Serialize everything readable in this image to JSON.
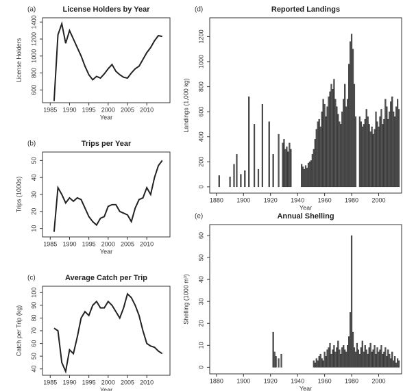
{
  "chart_data": [
    {
      "type": "line",
      "panel_label": "(a)",
      "title": "License Holders by Year",
      "x_label": "Year",
      "y_label": "License Holders",
      "color": "#222222",
      "x": [
        1986,
        1987,
        1988,
        1989,
        1990,
        1991,
        1992,
        1993,
        1994,
        1995,
        1996,
        1997,
        1998,
        1999,
        2000,
        2001,
        2002,
        2003,
        2004,
        2005,
        2006,
        2007,
        2008,
        2009,
        2010,
        2011,
        2012,
        2013,
        2014
      ],
      "values": [
        470,
        1250,
        1380,
        1150,
        1300,
        1200,
        1100,
        1000,
        880,
        780,
        720,
        760,
        740,
        790,
        850,
        900,
        820,
        780,
        750,
        740,
        800,
        850,
        880,
        960,
        1040,
        1100,
        1180,
        1240,
        1230
      ],
      "xlim": [
        1983,
        2016
      ],
      "xticks": [
        1985,
        1990,
        1995,
        2000,
        2005,
        2010
      ],
      "ylim": [
        450,
        1450
      ],
      "yticks": [
        600,
        800,
        1000,
        1200,
        1400
      ]
    },
    {
      "type": "line",
      "panel_label": "(b)",
      "title": "Trips per Year",
      "x_label": "Year",
      "y_label": "Trips (1000s)",
      "color": "#222222",
      "x": [
        1986,
        1987,
        1988,
        1989,
        1990,
        1991,
        1992,
        1993,
        1994,
        1995,
        1996,
        1997,
        1998,
        1999,
        2000,
        2001,
        2002,
        2003,
        2004,
        2005,
        2006,
        2007,
        2008,
        2009,
        2010,
        2011,
        2012,
        2013,
        2014
      ],
      "values": [
        8,
        34,
        30,
        25,
        28,
        26,
        28,
        27,
        22,
        17,
        14,
        12,
        16,
        17,
        23,
        24,
        24,
        20,
        19,
        18,
        14,
        22,
        27,
        28,
        34,
        30,
        40,
        47,
        50
      ],
      "xlim": [
        1983,
        2016
      ],
      "xticks": [
        1985,
        1990,
        1995,
        2000,
        2005,
        2010
      ],
      "ylim": [
        5,
        55
      ],
      "yticks": [
        10,
        20,
        30,
        40,
        50
      ]
    },
    {
      "type": "line",
      "panel_label": "(c)",
      "title": "Average Catch per Trip",
      "x_label": "Year",
      "y_label": "Catch per Trip (kg)",
      "color": "#222222",
      "x": [
        1986,
        1987,
        1988,
        1989,
        1990,
        1991,
        1992,
        1993,
        1994,
        1995,
        1996,
        1997,
        1998,
        1999,
        2000,
        2001,
        2002,
        2003,
        2004,
        2005,
        2006,
        2007,
        2008,
        2009,
        2010,
        2011,
        2012,
        2013,
        2014
      ],
      "values": [
        72,
        70,
        45,
        38,
        55,
        52,
        65,
        80,
        85,
        82,
        90,
        93,
        88,
        88,
        93,
        90,
        85,
        80,
        88,
        99,
        96,
        90,
        82,
        70,
        60,
        58,
        57,
        54,
        52
      ],
      "xlim": [
        1983,
        2016
      ],
      "xticks": [
        1985,
        1990,
        1995,
        2000,
        2005,
        2010
      ],
      "ylim": [
        35,
        105
      ],
      "yticks": [
        40,
        50,
        60,
        70,
        80,
        90,
        100
      ]
    },
    {
      "type": "bar",
      "panel_label": "(d)",
      "title": "Reported Landings",
      "x_label": "Year",
      "y_label": "Landings (1,000 kg)",
      "color": "#555555",
      "x": [
        1882,
        1890,
        1893,
        1895,
        1898,
        1901,
        1904,
        1908,
        1911,
        1914,
        1919,
        1922,
        1926,
        1929,
        1930,
        1931,
        1932,
        1933,
        1934,
        1935,
        1943,
        1944,
        1945,
        1946,
        1947,
        1948,
        1949,
        1950,
        1951,
        1952,
        1953,
        1954,
        1955,
        1956,
        1957,
        1958,
        1959,
        1960,
        1961,
        1962,
        1963,
        1964,
        1965,
        1966,
        1967,
        1968,
        1969,
        1970,
        1971,
        1972,
        1973,
        1974,
        1975,
        1976,
        1977,
        1978,
        1979,
        1980,
        1981,
        1982,
        1983,
        1986,
        1987,
        1988,
        1989,
        1990,
        1991,
        1992,
        1993,
        1994,
        1995,
        1996,
        1997,
        1998,
        1999,
        2000,
        2001,
        2002,
        2003,
        2004,
        2005,
        2006,
        2007,
        2008,
        2009,
        2010,
        2011,
        2012,
        2013,
        2014,
        2015
      ],
      "values": [
        90,
        80,
        180,
        260,
        100,
        130,
        720,
        500,
        140,
        660,
        520,
        260,
        420,
        350,
        380,
        300,
        320,
        280,
        350,
        300,
        180,
        160,
        140,
        170,
        150,
        190,
        200,
        210,
        260,
        300,
        380,
        460,
        520,
        540,
        480,
        600,
        700,
        660,
        560,
        640,
        720,
        760,
        820,
        780,
        860,
        700,
        640,
        580,
        520,
        500,
        600,
        700,
        820,
        640,
        700,
        980,
        1160,
        1220,
        1100,
        820,
        560,
        560,
        520,
        480,
        500,
        540,
        620,
        560,
        500,
        440,
        480,
        420,
        460,
        600,
        520,
        480,
        560,
        620,
        500,
        540,
        700,
        640,
        540,
        600,
        680,
        720,
        600,
        560,
        640,
        700,
        620
      ],
      "xlim": [
        1875,
        2017
      ],
      "xticks": [
        1880,
        1900,
        1920,
        1940,
        1960,
        1980,
        2000
      ],
      "ylim": [
        -50,
        1350
      ],
      "yticks": [
        0,
        200,
        400,
        600,
        800,
        1000,
        1200
      ]
    },
    {
      "type": "bar",
      "panel_label": "(e)",
      "title": "Annual Shelling",
      "x_label": "Year",
      "y_label": "Shelling (1000 m³)",
      "color": "#555555",
      "x": [
        1922,
        1923,
        1924,
        1926,
        1928,
        1952,
        1953,
        1954,
        1955,
        1956,
        1957,
        1958,
        1959,
        1960,
        1961,
        1962,
        1963,
        1964,
        1965,
        1966,
        1967,
        1968,
        1969,
        1970,
        1971,
        1972,
        1973,
        1974,
        1975,
        1976,
        1977,
        1978,
        1979,
        1980,
        1981,
        1982,
        1983,
        1984,
        1985,
        1986,
        1987,
        1988,
        1989,
        1990,
        1991,
        1992,
        1993,
        1994,
        1995,
        1996,
        1997,
        1998,
        1999,
        2000,
        2001,
        2002,
        2003,
        2004,
        2005,
        2006,
        2007,
        2008,
        2009,
        2010,
        2011,
        2012,
        2013,
        2014,
        2015
      ],
      "values": [
        16,
        7,
        5,
        4,
        6,
        3,
        2,
        4,
        3,
        5,
        6,
        4,
        3,
        7,
        5,
        8,
        9,
        11,
        6,
        8,
        10,
        7,
        9,
        12,
        8,
        6,
        9,
        10,
        8,
        7,
        10,
        14,
        25,
        60,
        16,
        9,
        7,
        11,
        8,
        6,
        9,
        12,
        7,
        10,
        8,
        6,
        9,
        11,
        7,
        8,
        10,
        6,
        9,
        7,
        8,
        10,
        6,
        7,
        9,
        5,
        8,
        6,
        4,
        7,
        3,
        5,
        2,
        4,
        3
      ],
      "xlim": [
        1875,
        2017
      ],
      "xticks": [
        1880,
        1900,
        1920,
        1940,
        1960,
        1980,
        2000
      ],
      "ylim": [
        -3,
        65
      ],
      "yticks": [
        0,
        10,
        20,
        30,
        40,
        50,
        60
      ]
    }
  ]
}
